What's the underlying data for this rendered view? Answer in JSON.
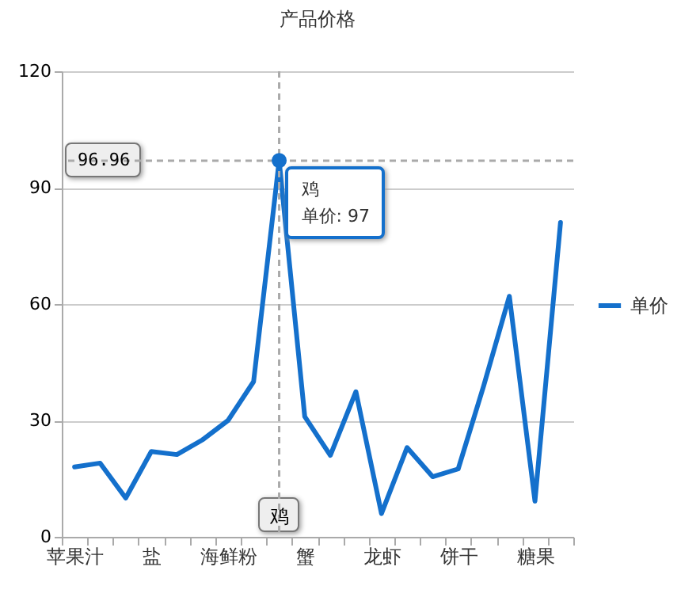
{
  "chart_data": {
    "type": "line",
    "title": "产品价格",
    "categories": [
      "苹果汁",
      null,
      null,
      "盐",
      null,
      null,
      "海鲜粉",
      null,
      "鸡",
      "蟹",
      null,
      null,
      "龙虾",
      null,
      null,
      "饼干",
      null,
      null,
      "糖果",
      null
    ],
    "series": [
      {
        "name": "单价",
        "color": "#1470cc",
        "values": [
          18,
          19,
          10,
          22,
          21.2,
          25,
          30,
          40,
          97,
          31,
          21,
          37.4,
          6,
          23,
          15.5,
          17.5,
          39,
          62,
          9.2,
          81
        ]
      }
    ],
    "ylim": [
      0,
      120
    ],
    "yticks": [
      0,
      30,
      60,
      90,
      120
    ],
    "grid": "y",
    "legend": "right",
    "marker": "none",
    "line_style": "solid",
    "ref_lines": [
      {
        "axis": "x",
        "value": "鸡",
        "color": "#aaaaaa",
        "line_style": "dashed"
      },
      {
        "axis": "y",
        "value": 96.96,
        "label": "96.96",
        "color": "#aaaaaa",
        "line_style": "dashed"
      }
    ],
    "annotations": [
      {
        "text": "单价: 97",
        "x": "鸡",
        "y": 97
      }
    ]
  }
}
